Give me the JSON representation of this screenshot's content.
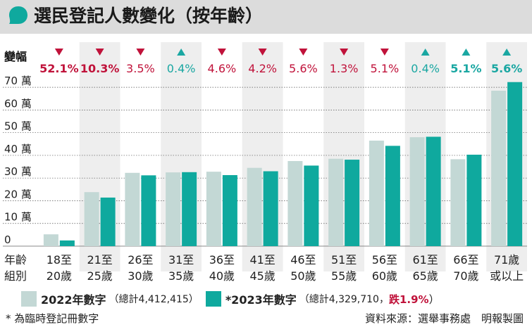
{
  "title": "選民登記人數變化（按年齡）",
  "change_label": "變幅",
  "age_label": [
    "年齡",
    "組別"
  ],
  "footnote": "* 為臨時登記冊數字",
  "source": "資料來源：選舉事務處　明報製圖",
  "legend": {
    "a_label": "2022年數字",
    "a_note": "（總計4,412,415）",
    "b_label": "*2023年數字",
    "b_note": "（總計4,329,710，",
    "b_drop": "跌1.9%",
    "b_close": "）"
  },
  "colors": {
    "series_2022": "#c3d8d5",
    "series_2023": "#0fa99e",
    "down": "#c0123a",
    "up": "#1aa7a2",
    "band": "#eeeeee",
    "title_bar": "#dcdcdc"
  },
  "chart_data": {
    "type": "bar",
    "categories": [
      [
        "18至",
        "20歲"
      ],
      [
        "21至",
        "25歲"
      ],
      [
        "26至",
        "30歲"
      ],
      [
        "31至",
        "35歲"
      ],
      [
        "36至",
        "40歲"
      ],
      [
        "41至",
        "45歲"
      ],
      [
        "46至",
        "50歲"
      ],
      [
        "51至",
        "55歲"
      ],
      [
        "56至",
        "60歲"
      ],
      [
        "61至",
        "65歲"
      ],
      [
        "66至",
        "70歲"
      ],
      [
        "71歲",
        "或以上"
      ]
    ],
    "series": [
      {
        "name": "2022年數字",
        "values": [
          5.2,
          23.8,
          32.3,
          32.5,
          32.8,
          34.5,
          37.5,
          38.5,
          46.5,
          48.0,
          38.3,
          68.5
        ]
      },
      {
        "name": "*2023年數字",
        "values": [
          2.5,
          21.4,
          31.2,
          32.6,
          31.3,
          33.0,
          35.5,
          38.1,
          44.2,
          48.2,
          40.3,
          72.3
        ]
      }
    ],
    "change": [
      {
        "dir": "down",
        "text": "52.1%",
        "bold": true
      },
      {
        "dir": "down",
        "text": "10.3%",
        "bold": true
      },
      {
        "dir": "down",
        "text": "3.5%",
        "bold": false
      },
      {
        "dir": "up",
        "text": "0.4%",
        "bold": false
      },
      {
        "dir": "down",
        "text": "4.6%",
        "bold": false
      },
      {
        "dir": "down",
        "text": "4.2%",
        "bold": false
      },
      {
        "dir": "down",
        "text": "5.6%",
        "bold": false
      },
      {
        "dir": "down",
        "text": "1.3%",
        "bold": false
      },
      {
        "dir": "down",
        "text": "5.1%",
        "bold": false
      },
      {
        "dir": "up",
        "text": "0.4%",
        "bold": false
      },
      {
        "dir": "up",
        "text": "5.1%",
        "bold": true
      },
      {
        "dir": "up",
        "text": "5.6%",
        "bold": true
      }
    ],
    "yticks": [
      {
        "v": 0,
        "label": "0"
      },
      {
        "v": 10,
        "label": "10 萬"
      },
      {
        "v": 20,
        "label": "20 萬"
      },
      {
        "v": 30,
        "label": "30 萬"
      },
      {
        "v": 40,
        "label": "40 萬"
      },
      {
        "v": 50,
        "label": "50 萬"
      },
      {
        "v": 60,
        "label": "60 萬"
      },
      {
        "v": 70,
        "label": "70 萬"
      }
    ],
    "ylim": [
      0,
      75
    ],
    "unit": "萬",
    "grid": true
  }
}
